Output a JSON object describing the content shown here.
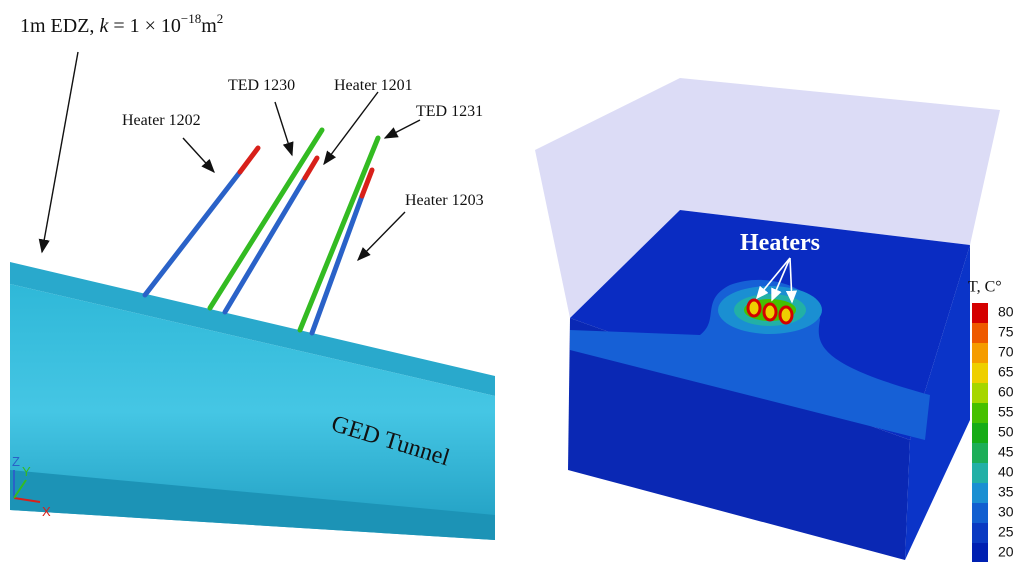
{
  "left_panel": {
    "edz_label": {
      "prefix": "1m EDZ, ",
      "var": "k",
      "eq": " = 1 × 10",
      "exp": "−18",
      "unit": "m",
      "unit_exp": "2"
    },
    "labels": [
      "Heater 1202",
      "TED 1230",
      "Heater 1201",
      "TED 1231",
      "Heater 1203"
    ],
    "tunnel_label": "GED Tunnel",
    "axes": {
      "z": "Z",
      "y": "Y",
      "x": "X"
    }
  },
  "right_panel": {
    "annotation": "Heaters",
    "colorbar": {
      "title": "T, C°",
      "ticks": [
        80,
        75,
        70,
        65,
        60,
        55,
        50,
        45,
        40,
        35,
        30,
        25,
        20
      ],
      "colors": [
        "#d40000",
        "#ee5a00",
        "#f59c00",
        "#eecf00",
        "#a6d600",
        "#46c000",
        "#16ac16",
        "#1cae58",
        "#22b0a6",
        "#1a8fd2",
        "#115fd0",
        "#0a3ac2",
        "#0020b2"
      ]
    }
  }
}
